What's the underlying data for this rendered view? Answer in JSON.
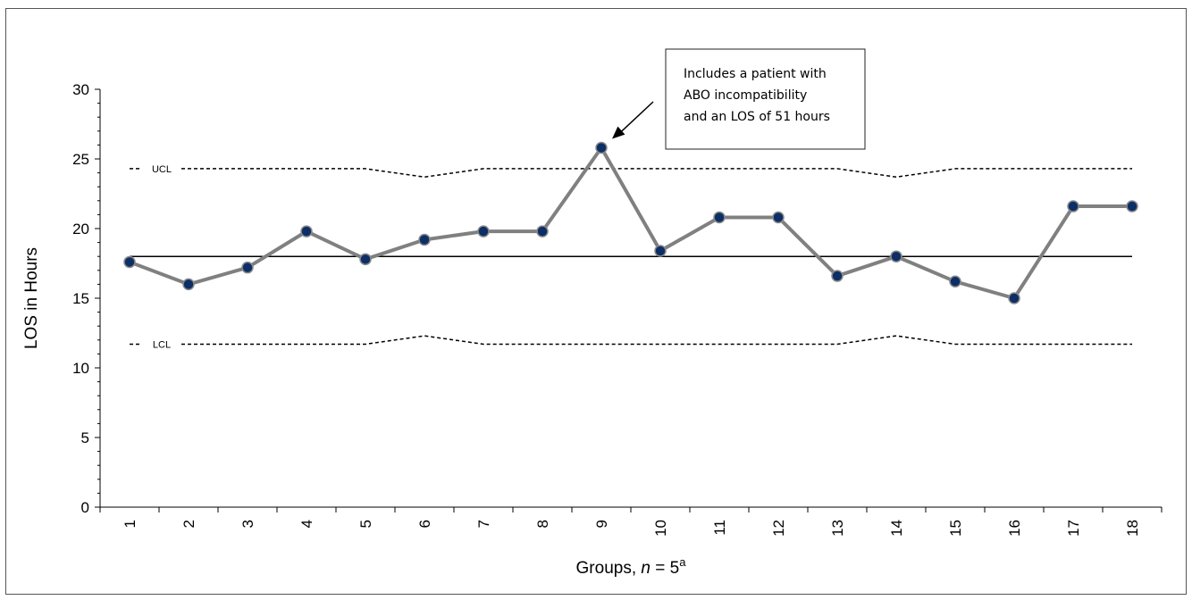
{
  "chart_data": {
    "type": "line",
    "xlabel": "Groups, ",
    "xlabel_italic": "n",
    "xlabel_suffix": " = 5",
    "xlabel_superscript": "a",
    "ylabel": "LOS in Hours",
    "ylim": [
      0,
      30
    ],
    "yticks": [
      "0",
      "5",
      "10",
      "15",
      "20",
      "25",
      "30"
    ],
    "grid": false,
    "categories": [
      "1",
      "2",
      "3",
      "4",
      "5",
      "6",
      "7",
      "8",
      "9",
      "10",
      "11",
      "12",
      "13",
      "14",
      "15",
      "16",
      "17",
      "18"
    ],
    "series": [
      {
        "values": [
          17.6,
          16.0,
          17.2,
          19.8,
          17.8,
          19.2,
          19.8,
          19.8,
          25.8,
          18.4,
          20.8,
          20.8,
          16.6,
          18.0,
          16.2,
          15.0,
          21.6,
          21.6
        ]
      }
    ],
    "center_line": 18.0,
    "ucl": {
      "label": "UCL",
      "values": [
        24.3,
        24.3,
        24.3,
        24.3,
        24.3,
        23.7,
        24.3,
        24.3,
        24.3,
        24.3,
        24.3,
        24.3,
        24.3,
        23.7,
        24.3,
        24.3,
        24.3,
        24.3
      ]
    },
    "lcl": {
      "label": "LCL",
      "values": [
        11.7,
        11.7,
        11.7,
        11.7,
        11.7,
        12.3,
        11.7,
        11.7,
        11.7,
        11.7,
        11.7,
        11.7,
        11.7,
        12.3,
        11.7,
        11.7,
        11.7,
        11.7
      ]
    },
    "annotation": {
      "lines": [
        "Includes a patient with",
        "ABO incompatibility",
        "and an LOS of 51 hours"
      ],
      "points_to": "9"
    },
    "colors": {
      "line": "#808080",
      "marker_fill": "#0d2f66",
      "marker_edge": "#8a8a8a",
      "center": "#000000",
      "limits": "#000000"
    }
  }
}
